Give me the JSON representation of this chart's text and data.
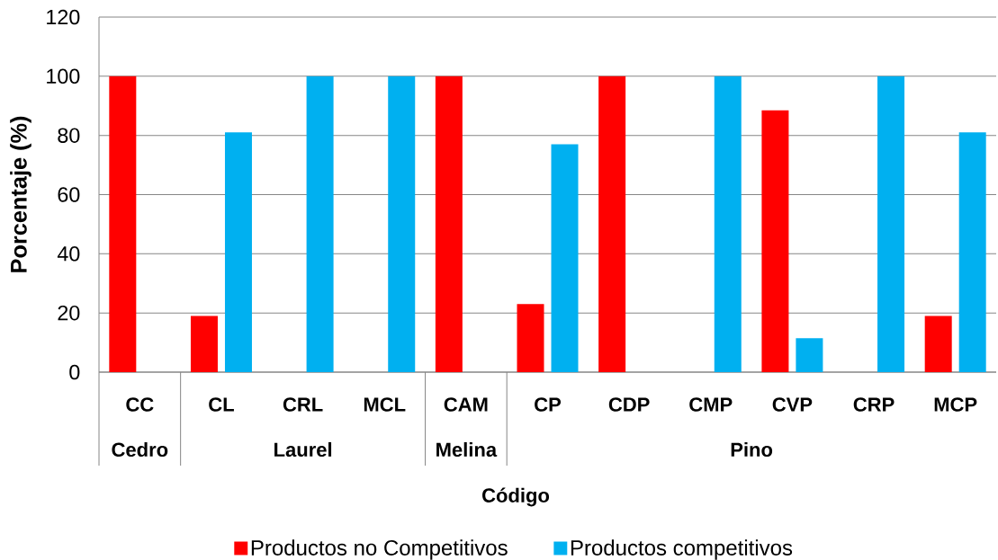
{
  "chart_data": {
    "type": "bar",
    "categories": [
      "CC",
      "CL",
      "CRL",
      "MCL",
      "CAM",
      "CP",
      "CDP",
      "CMP",
      "CVP",
      "CRP",
      "MCP"
    ],
    "series": [
      {
        "name": "Productos no Competitivos",
        "color": "#ff0000",
        "values": [
          100,
          19,
          0,
          0,
          100,
          23,
          100,
          0,
          88.5,
          0,
          19
        ]
      },
      {
        "name": "Productos competitivos",
        "color": "#00b0f0",
        "values": [
          0,
          81,
          100,
          100,
          0,
          77,
          0,
          100,
          11.5,
          100,
          81
        ]
      }
    ],
    "xlabel": "Código",
    "ylabel": "Porcentaje (%)",
    "annotations": [
      "Cedro",
      "Laurel",
      "Melina",
      "Pino"
    ],
    "ylim": [
      0,
      120
    ],
    "yticks": [
      0,
      20,
      40,
      60,
      80,
      100,
      120
    ],
    "grid": "y",
    "legend": "bottom"
  }
}
